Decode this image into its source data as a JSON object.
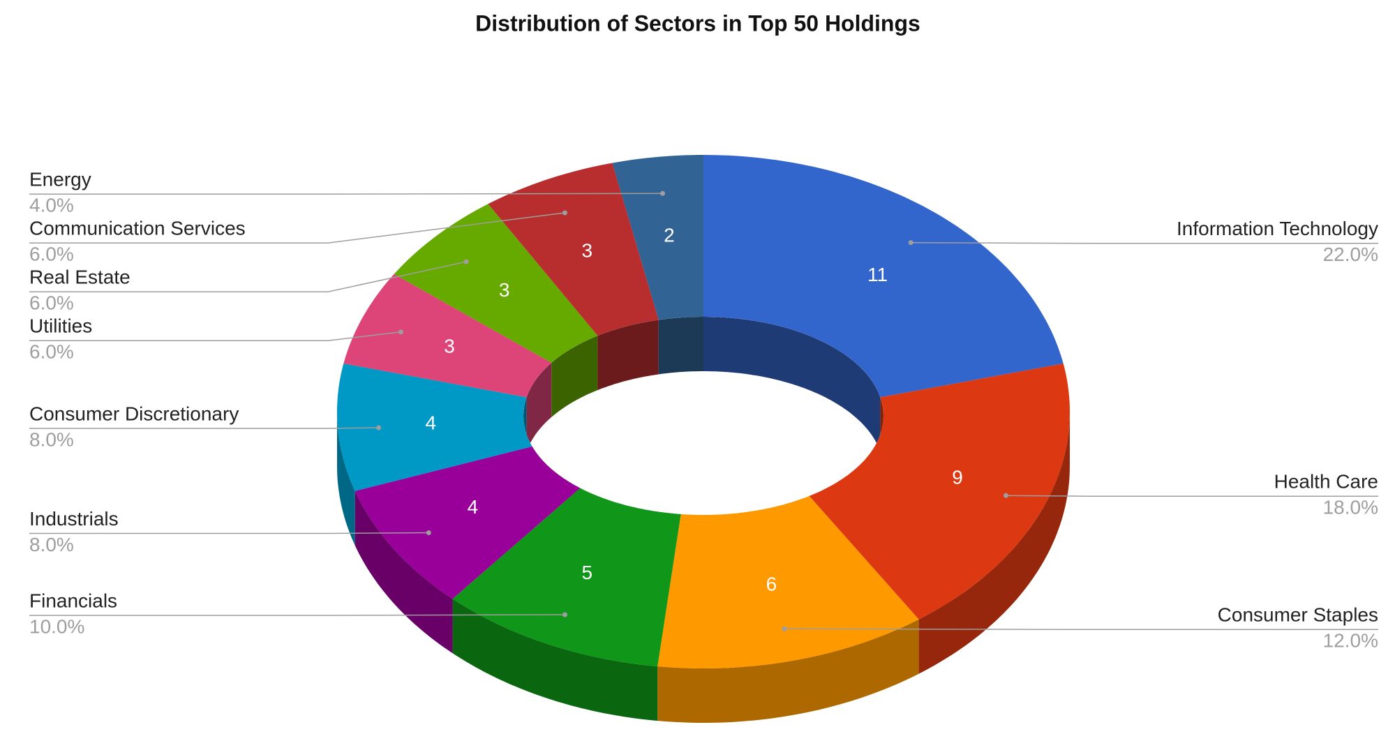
{
  "chart_data": {
    "type": "donut3d",
    "title": "Distribution of Sectors in Top 50 Holdings",
    "categories": [
      "Information Technology",
      "Health Care",
      "Consumer Staples",
      "Financials",
      "Industrials",
      "Consumer Discretionary",
      "Utilities",
      "Real Estate",
      "Communication Services",
      "Energy"
    ],
    "values": [
      11,
      9,
      6,
      5,
      4,
      4,
      3,
      3,
      3,
      2
    ],
    "percent_labels": [
      "22.0%",
      "18.0%",
      "12.0%",
      "10.0%",
      "8.0%",
      "8.0%",
      "6.0%",
      "6.0%",
      "6.0%",
      "4.0%"
    ],
    "colors": [
      "#3366cc",
      "#dc3912",
      "#ff9900",
      "#109618",
      "#990099",
      "#0099c6",
      "#dd4477",
      "#66aa00",
      "#b82e2e",
      "#316395"
    ]
  }
}
